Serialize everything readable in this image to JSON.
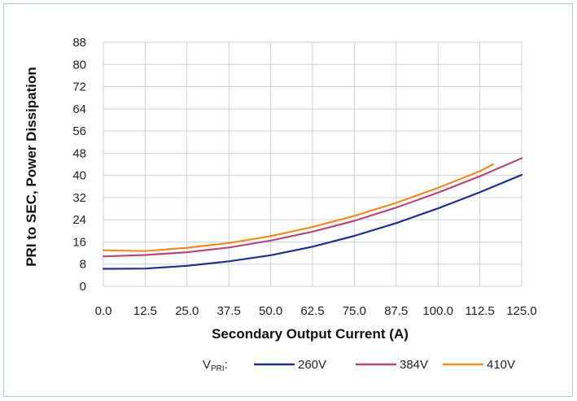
{
  "chart_data": {
    "type": "line",
    "title": "",
    "xlabel": "Secondary Output Current (A)",
    "ylabel": "PRI to SEC, Power Dissipation",
    "xlim": [
      0,
      125
    ],
    "ylim": [
      0,
      88
    ],
    "x_ticks": [
      "0.0",
      "12.5",
      "25.0",
      "37.5",
      "50.0",
      "62.5",
      "75.0",
      "87.5",
      "100.0",
      "112.5",
      "125.0"
    ],
    "y_ticks": [
      "0",
      "8",
      "16",
      "24",
      "32",
      "40",
      "48",
      "56",
      "64",
      "72",
      "80",
      "88"
    ],
    "grid": true,
    "legend_placement": "bottom",
    "legend": {
      "prefix_main": "V",
      "prefix_sub": "PRI",
      "prefix_suffix": ":"
    },
    "series": [
      {
        "name": "260V",
        "color": "#1f2f8c",
        "points": [
          [
            0,
            6.3
          ],
          [
            12.5,
            6.4
          ],
          [
            25,
            7.4
          ],
          [
            37.5,
            9.0
          ],
          [
            50,
            11.2
          ],
          [
            62.5,
            14.3
          ],
          [
            75,
            18.2
          ],
          [
            87.5,
            22.8
          ],
          [
            100,
            28.1
          ],
          [
            112.5,
            33.9
          ],
          [
            125,
            40.2
          ]
        ]
      },
      {
        "name": "384V",
        "color": "#b54a7a",
        "points": [
          [
            0,
            10.8
          ],
          [
            12.5,
            11.3
          ],
          [
            25,
            12.3
          ],
          [
            37.5,
            14.0
          ],
          [
            50,
            16.5
          ],
          [
            62.5,
            19.7
          ],
          [
            75,
            23.6
          ],
          [
            87.5,
            28.4
          ],
          [
            100,
            33.8
          ],
          [
            112.5,
            39.7
          ],
          [
            125,
            46.2
          ]
        ]
      },
      {
        "name": "410V",
        "color": "#f08a24",
        "points": [
          [
            0,
            13.0
          ],
          [
            12.5,
            12.7
          ],
          [
            25,
            13.9
          ],
          [
            37.5,
            15.6
          ],
          [
            50,
            18.1
          ],
          [
            62.5,
            21.4
          ],
          [
            75,
            25.4
          ],
          [
            87.5,
            30.1
          ],
          [
            100,
            35.5
          ],
          [
            112.5,
            41.5
          ],
          [
            116.5,
            44.0
          ]
        ]
      }
    ]
  }
}
